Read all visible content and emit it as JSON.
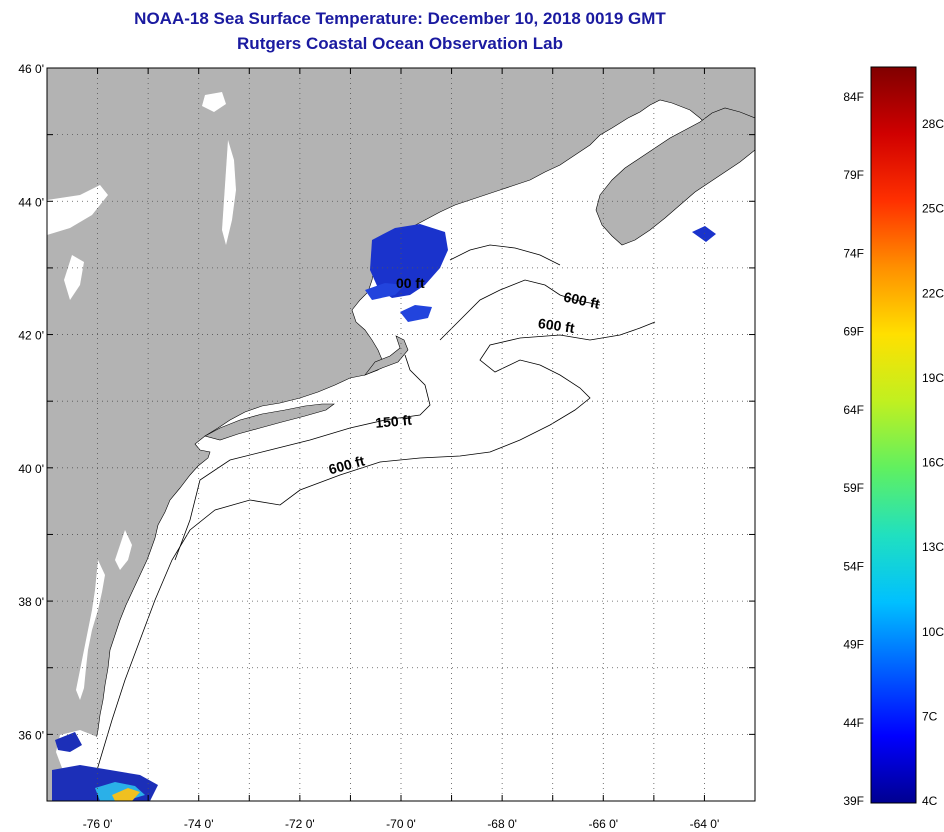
{
  "header": {
    "title": "NOAA-18 Sea Surface Temperature:  December 10, 2018 0019 GMT",
    "subtitle": "Rutgers Coastal Ocean Observation Lab"
  },
  "map": {
    "lat_labels": [
      {
        "lat": 46,
        "label": "46 0'"
      },
      {
        "lat": 44,
        "label": "44 0'"
      },
      {
        "lat": 42,
        "label": "42 0'"
      },
      {
        "lat": 40,
        "label": "40 0'"
      },
      {
        "lat": 38,
        "label": "38 0'"
      },
      {
        "lat": 36,
        "label": "36 0'"
      }
    ],
    "lon_labels": [
      {
        "lon": -76,
        "label": "-76 0'"
      },
      {
        "lon": -74,
        "label": "-74 0'"
      },
      {
        "lon": -72,
        "label": "-72 0'"
      },
      {
        "lon": -70,
        "label": "-70 0'"
      },
      {
        "lon": -68,
        "label": "-68 0'"
      },
      {
        "lon": -66,
        "label": "-66 0'"
      },
      {
        "lon": -64,
        "label": "-64 0'"
      }
    ],
    "lon_range": [
      -77,
      -63
    ],
    "lat_range": [
      35,
      46
    ],
    "grid": "dotted",
    "land_color": "#b3b3b3",
    "water_color": "#ffffff",
    "contour_labels": [
      {
        "text": "600 ft",
        "lon": -66.8,
        "lat": 42.5
      },
      {
        "text": "600 ft",
        "lon": -67.3,
        "lat": 42.1
      },
      {
        "text": "150 ft",
        "lon": -70.5,
        "lat": 40.6
      },
      {
        "text": "600 ft",
        "lon": -71.4,
        "lat": 39.9
      },
      {
        "text": "00 ft",
        "lon": -70.1,
        "lat": 42.7
      }
    ]
  },
  "colorbar": {
    "f_labels": [
      "84F",
      "79F",
      "74F",
      "69F",
      "64F",
      "59F",
      "54F",
      "49F",
      "44F",
      "39F"
    ],
    "c_labels": [
      "28C",
      "25C",
      "22C",
      "19C",
      "16C",
      "13C",
      "10C",
      "7C",
      "4C"
    ],
    "colors": [
      "#000090",
      "#0000ff",
      "#0060ff",
      "#00c0ff",
      "#20e0c0",
      "#60f060",
      "#c0f020",
      "#ffe000",
      "#ff9000",
      "#ff3000",
      "#d00000",
      "#800000"
    ]
  }
}
